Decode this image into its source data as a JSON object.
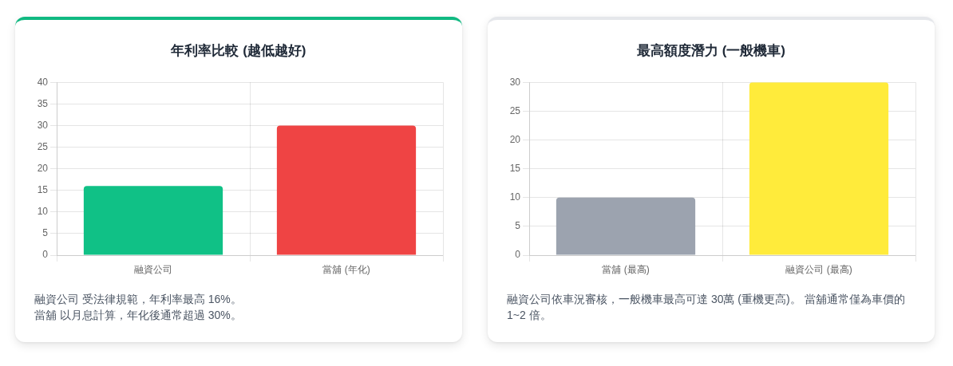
{
  "chart_data": [
    {
      "type": "bar",
      "title": "年利率比較 (越低越好)",
      "categories": [
        "融資公司",
        "當舖 (年化)"
      ],
      "values": [
        16,
        30
      ],
      "colors": [
        "#10c186",
        "#ef4444"
      ],
      "ylim": [
        0,
        40
      ],
      "yticks": [
        0,
        5,
        10,
        15,
        20,
        25,
        30,
        35,
        40
      ],
      "grid": true,
      "annotations": [
        "融資公司 受法律規範，年利率最高 16%。",
        "當舖 以月息計算，年化後通常超過 30%。"
      ]
    },
    {
      "type": "bar",
      "title": "最高額度潛力 (一般機車)",
      "categories": [
        "當舖 (最高)",
        "融資公司 (最高)"
      ],
      "values": [
        10,
        30
      ],
      "colors": [
        "#9ca3af",
        "#ffeb3b"
      ],
      "ylim": [
        0,
        30
      ],
      "yticks": [
        0,
        5,
        10,
        15,
        20,
        25,
        30
      ],
      "grid": true,
      "annotations": [
        "融資公司依車況審核，一般機車最高可達 30萬 (重機更高)。 當舖通常僅為車價的 1~2 倍。"
      ]
    }
  ]
}
